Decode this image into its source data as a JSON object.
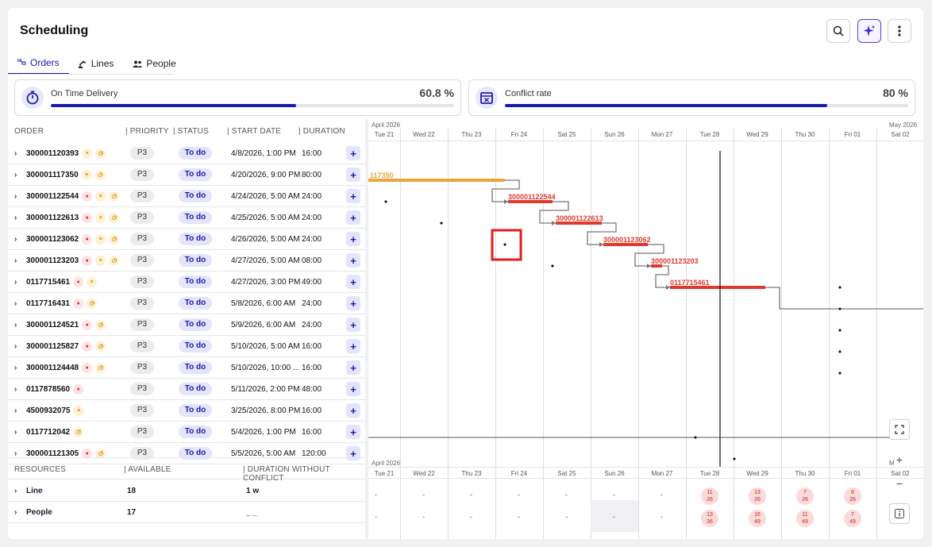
{
  "header": {
    "title": "Scheduling"
  },
  "tabs": [
    {
      "label": "Orders"
    },
    {
      "label": "Lines"
    },
    {
      "label": "People"
    }
  ],
  "kpis": [
    {
      "label": "On Time Delivery",
      "value": "60.8 %",
      "fraction": 0.608
    },
    {
      "label": "Conflict rate",
      "value": "80 %",
      "fraction": 0.8
    }
  ],
  "orders_header": {
    "order": "ORDER",
    "priority": "| PRIORITY",
    "status": "| STATUS",
    "start": "| START DATE",
    "duration": "| DURATION"
  },
  "orders": [
    {
      "id": "300001120393",
      "icons": [
        "x",
        "clk"
      ],
      "priority": "P3",
      "status": "To do",
      "start": "4/8/2026, 1:00 PM",
      "duration": "16:00"
    },
    {
      "id": "300001117350",
      "icons": [
        "x",
        "clk"
      ],
      "priority": "P3",
      "status": "To do",
      "start": "4/20/2026, 9:00 PM",
      "duration": "80:00"
    },
    {
      "id": "300001122544",
      "icons": [
        "ppl",
        "x",
        "clk"
      ],
      "priority": "P3",
      "status": "To do",
      "start": "4/24/2026, 5:00 AM",
      "duration": "24:00"
    },
    {
      "id": "300001122613",
      "icons": [
        "ppl",
        "x",
        "clk"
      ],
      "priority": "P3",
      "status": "To do",
      "start": "4/25/2026, 5:00 AM",
      "duration": "24:00"
    },
    {
      "id": "300001123062",
      "icons": [
        "ppl",
        "x",
        "clk"
      ],
      "priority": "P3",
      "status": "To do",
      "start": "4/26/2026, 5:00 AM",
      "duration": "24:00"
    },
    {
      "id": "300001123203",
      "icons": [
        "ppl",
        "x",
        "clk"
      ],
      "priority": "P3",
      "status": "To do",
      "start": "4/27/2026, 5:00 AM",
      "duration": "08:00"
    },
    {
      "id": "0117715461",
      "icons": [
        "ppl",
        "x"
      ],
      "priority": "P3",
      "status": "To do",
      "start": "4/27/2026, 3:00 PM",
      "duration": "49:00"
    },
    {
      "id": "0117716431",
      "icons": [
        "ppl",
        "clk"
      ],
      "priority": "P3",
      "status": "To do",
      "start": "5/8/2026, 6:00 AM",
      "duration": "24:00"
    },
    {
      "id": "300001124521",
      "icons": [
        "ppl",
        "clk"
      ],
      "priority": "P3",
      "status": "To do",
      "start": "5/9/2026, 6:00 AM",
      "duration": "24:00"
    },
    {
      "id": "300001125827",
      "icons": [
        "ppl",
        "clk"
      ],
      "priority": "P3",
      "status": "To do",
      "start": "5/10/2026, 5:00 AM",
      "duration": "16:00"
    },
    {
      "id": "300001124448",
      "icons": [
        "ppl",
        "clk"
      ],
      "priority": "P3",
      "status": "To do",
      "start": "5/10/2026, 10:00 ...",
      "duration": "16:00"
    },
    {
      "id": "0117878560",
      "icons": [
        "ppl"
      ],
      "priority": "P3",
      "status": "To do",
      "start": "5/11/2026, 2:00 PM",
      "duration": "48:00"
    },
    {
      "id": "4500932075",
      "icons": [
        "x"
      ],
      "priority": "P3",
      "status": "To do",
      "start": "3/25/2026, 8:00 PM",
      "duration": "16:00"
    },
    {
      "id": "0117712042",
      "icons": [
        "clk"
      ],
      "priority": "P3",
      "status": "To do",
      "start": "5/4/2026, 1:00 PM",
      "duration": "16:00"
    },
    {
      "id": "300001121305",
      "icons": [
        "ppl",
        "clk"
      ],
      "priority": "P3",
      "status": "To do",
      "start": "5/5/2026, 5:00 AM",
      "duration": "120:00"
    }
  ],
  "resources_header": {
    "resources": "RESOURCES",
    "available": "| AVAILABLE",
    "dwc": "| DURATION WITHOUT CONFLICT"
  },
  "resources": [
    {
      "name": "Line",
      "available": "18",
      "dwc": "1 w"
    },
    {
      "name": "People",
      "available": "17",
      "dwc": "_ _"
    }
  ],
  "gantt": {
    "month_start": "April 2026",
    "month_end": "May 2026",
    "month_end_short": "M",
    "days": [
      "Tue 21",
      "Wed 22",
      "Thu 23",
      "Fri 24",
      "Sat 25",
      "Sun 26",
      "Mon 27",
      "Tue 28",
      "Wed 29",
      "Thu 30",
      "Fri 01",
      "Sat 02"
    ],
    "bars": [
      {
        "label": "117350",
        "color": "#f0a33a"
      },
      {
        "label": "300001122544",
        "color": "#e03a2e"
      },
      {
        "label": "300001122613",
        "color": "#e03a2e"
      },
      {
        "label": "300001123062",
        "color": "#e03a2e"
      },
      {
        "label": "300001123203",
        "color": "#e03a2e"
      },
      {
        "label": "0117715461",
        "color": "#e03a2e"
      }
    ],
    "conflicts_line": [
      [
        "11",
        "26"
      ],
      [
        "13",
        "26"
      ],
      [
        "7",
        "26"
      ],
      [
        "8",
        "26"
      ]
    ],
    "conflicts_people": [
      [
        "13",
        "36"
      ],
      [
        "16",
        "49"
      ],
      [
        "11",
        "49"
      ],
      [
        "7",
        "49"
      ]
    ],
    "dash": "-"
  }
}
